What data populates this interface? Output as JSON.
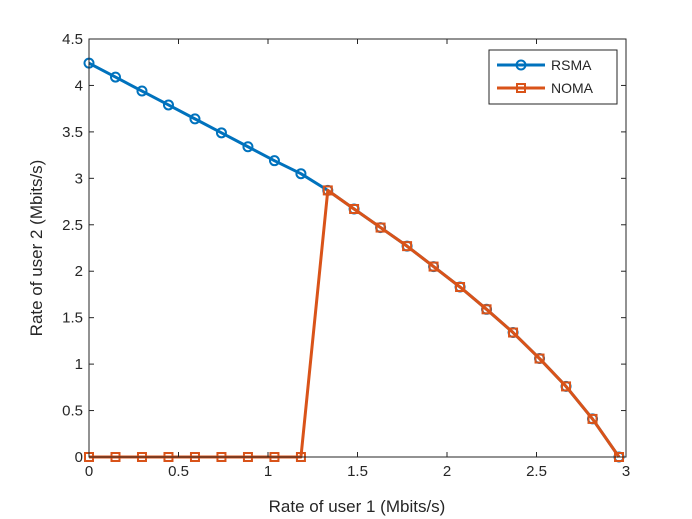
{
  "chart_data": {
    "type": "line",
    "title": "",
    "xlabel": "Rate of user 1 (Mbits/s)",
    "ylabel": "Rate of user 2 (Mbits/s)",
    "xlim": [
      0,
      3
    ],
    "ylim": [
      0,
      4.5
    ],
    "xticks": [
      0,
      0.5,
      1,
      1.5,
      2,
      2.5,
      3
    ],
    "yticks": [
      0,
      0.5,
      1,
      1.5,
      2,
      2.5,
      3,
      3.5,
      4,
      4.5
    ],
    "xtick_labels": [
      "0",
      "0.5",
      "1",
      "1.5",
      "2",
      "2.5",
      "3"
    ],
    "ytick_labels": [
      "0",
      "0.5",
      "1",
      "1.5",
      "2",
      "2.5",
      "3",
      "3.5",
      "4",
      "4.5"
    ],
    "grid": false,
    "legend_position": "top-right",
    "series": [
      {
        "name": "RSMA",
        "color": "#0072BD",
        "marker": "circle",
        "x": [
          0,
          0.148,
          0.296,
          0.444,
          0.592,
          0.74,
          0.888,
          1.036,
          1.184,
          1.334,
          1.481,
          1.629,
          1.777,
          1.925,
          2.073,
          2.221,
          2.369,
          2.517,
          2.665,
          2.813,
          2.961
        ],
        "y": [
          4.24,
          4.09,
          3.94,
          3.79,
          3.64,
          3.49,
          3.34,
          3.19,
          3.05,
          2.87,
          2.67,
          2.47,
          2.27,
          2.05,
          1.83,
          1.59,
          1.34,
          1.06,
          0.76,
          0.41,
          0
        ]
      },
      {
        "name": "NOMA",
        "color": "#D95319",
        "marker": "square",
        "x": [
          0,
          0.148,
          0.296,
          0.444,
          0.592,
          0.74,
          0.888,
          1.036,
          1.184,
          1.334,
          1.481,
          1.629,
          1.777,
          1.925,
          2.073,
          2.221,
          2.369,
          2.517,
          2.665,
          2.813,
          2.961
        ],
        "y": [
          0,
          0,
          0,
          0,
          0,
          0,
          0,
          0,
          0,
          2.87,
          2.67,
          2.47,
          2.27,
          2.05,
          1.83,
          1.59,
          1.34,
          1.06,
          0.76,
          0.41,
          0
        ]
      }
    ]
  }
}
